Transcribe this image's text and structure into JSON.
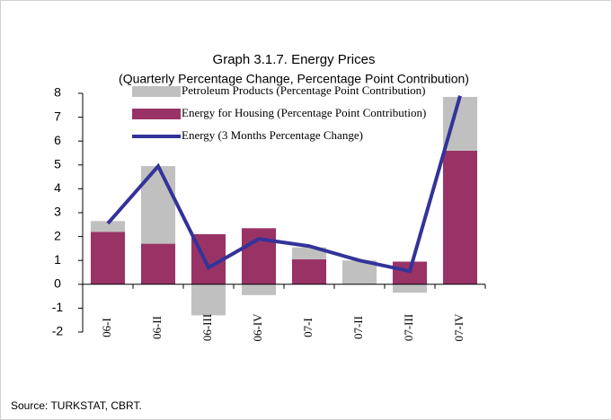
{
  "chart_data": {
    "type": "bar",
    "title": "Graph 3.1.7. Energy Prices",
    "subtitle": "(Quarterly Percentage Change, Percentage Point Contribution)",
    "source": "Source: TURKSTAT, CBRT.",
    "stacked": true,
    "categories": [
      "06-I",
      "06-II",
      "06-III",
      "06-IV",
      "07-I",
      "07-II",
      "07-III",
      "07-IV"
    ],
    "series": [
      {
        "name": "Petroleum Products (Percentage Point Contribution)",
        "type": "bar",
        "color": "#c0c0c0",
        "values": [
          0.45,
          3.25,
          -1.3,
          -0.45,
          0.5,
          1.0,
          -0.35,
          2.25
        ]
      },
      {
        "name": "Energy for Housing (Percentage Point Contribution)",
        "type": "bar",
        "color": "#993366",
        "values": [
          2.2,
          1.7,
          2.1,
          2.35,
          1.05,
          0,
          0.95,
          5.6
        ]
      },
      {
        "name": "Energy (3 Months Percentage Change)",
        "type": "line",
        "color": "#333399",
        "values": [
          2.55,
          4.95,
          0.7,
          1.9,
          1.6,
          1.0,
          0.55,
          7.9
        ]
      }
    ],
    "ylim": [
      -2,
      8
    ],
    "yticks": [
      -2,
      -1,
      0,
      1,
      2,
      3,
      4,
      5,
      6,
      7,
      8
    ]
  }
}
